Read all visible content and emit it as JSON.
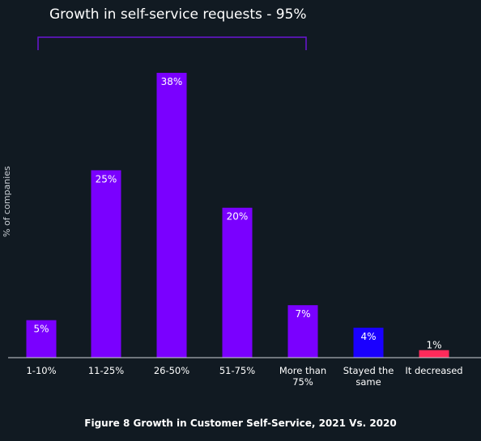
{
  "banner": "Growth in self-service requests - 95%",
  "caption": "Figure 8 Growth in Customer Self-Service, 2021 Vs. 2020",
  "chart_data": {
    "type": "bar",
    "ylabel": "% of companies",
    "xlabel": "",
    "categories": [
      [
        "1-10%"
      ],
      [
        "11-25%"
      ],
      [
        "26-50%"
      ],
      [
        "51-75%"
      ],
      [
        "More than",
        "75%"
      ],
      [
        "Stayed the",
        "same"
      ],
      [
        "It decreased"
      ]
    ],
    "values": [
      5,
      25,
      38,
      20,
      7,
      4,
      1
    ],
    "value_labels": [
      "5%",
      "25%",
      "38%",
      "20%",
      "7%",
      "4%",
      "1%"
    ],
    "colors": [
      "#7a00ff",
      "#7a00ff",
      "#7a00ff",
      "#7a00ff",
      "#7a00ff",
      "#1a00ff",
      "#ff2a5a"
    ],
    "ylim": [
      0,
      38
    ],
    "grid": false,
    "bracket_color": "#6a14d6"
  }
}
